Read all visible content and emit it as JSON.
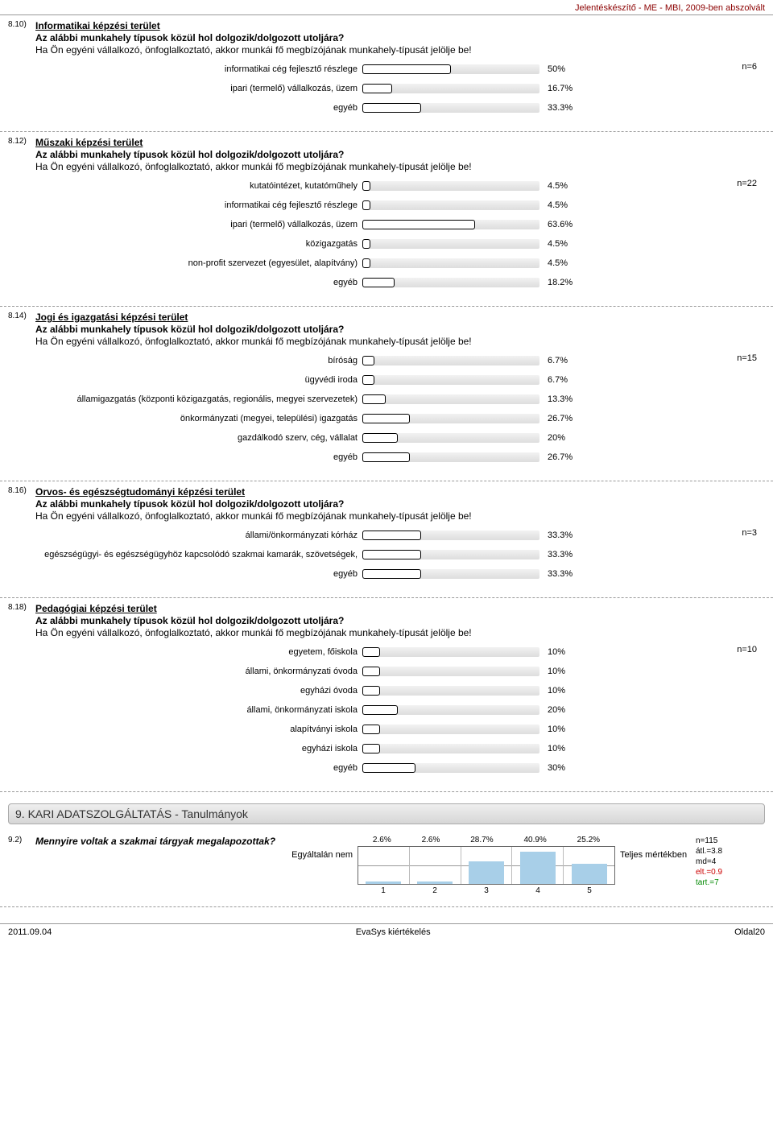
{
  "header_text": "Jelentéskészítő - ME - MBI, 2009-ben abszolvált",
  "q_common": {
    "line2": "Az alábbi munkahely típusok közül hol dolgozik/dolgozott utoljára?",
    "line3": "Ha Ön egyéni vállalkozó, önfoglalkoztató, akkor munkái fő megbízójának munkahely-típusát jelölje be!"
  },
  "bar_track_width": 220,
  "questions": [
    {
      "num": "8.10)",
      "title": "Informatikai képzési terület",
      "n": "n=6",
      "rows": [
        {
          "label": "informatikai cég fejlesztő részlege",
          "pct": 50,
          "pct_text": "50%"
        },
        {
          "label": "ipari (termelő) vállalkozás, üzem",
          "pct": 16.7,
          "pct_text": "16.7%"
        },
        {
          "label": "egyéb",
          "pct": 33.3,
          "pct_text": "33.3%"
        }
      ]
    },
    {
      "num": "8.12)",
      "title": "Műszaki képzési terület",
      "n": "n=22",
      "rows": [
        {
          "label": "kutatóintézet, kutatóműhely",
          "pct": 4.5,
          "pct_text": "4.5%"
        },
        {
          "label": "informatikai cég fejlesztő részlege",
          "pct": 4.5,
          "pct_text": "4.5%"
        },
        {
          "label": "ipari (termelő) vállalkozás, üzem",
          "pct": 63.6,
          "pct_text": "63.6%"
        },
        {
          "label": "közigazgatás",
          "pct": 4.5,
          "pct_text": "4.5%"
        },
        {
          "label": "non-profit szervezet (egyesület, alapítvány)",
          "pct": 4.5,
          "pct_text": "4.5%"
        },
        {
          "label": "egyéb",
          "pct": 18.2,
          "pct_text": "18.2%"
        }
      ]
    },
    {
      "num": "8.14)",
      "title": "Jogi és igazgatási képzési terület",
      "n": "n=15",
      "rows": [
        {
          "label": "bíróság",
          "pct": 6.7,
          "pct_text": "6.7%"
        },
        {
          "label": "ügyvédi iroda",
          "pct": 6.7,
          "pct_text": "6.7%"
        },
        {
          "label": "államigazgatás (központi közigazgatás, regionális, megyei szervezetek)",
          "pct": 13.3,
          "pct_text": "13.3%"
        },
        {
          "label": "önkormányzati (megyei, települési) igazgatás",
          "pct": 26.7,
          "pct_text": "26.7%"
        },
        {
          "label": "gazdálkodó szerv, cég, vállalat",
          "pct": 20,
          "pct_text": "20%"
        },
        {
          "label": "egyéb",
          "pct": 26.7,
          "pct_text": "26.7%"
        }
      ]
    },
    {
      "num": "8.16)",
      "title": "Orvos- és egészségtudományi képzési terület",
      "n": "n=3",
      "rows": [
        {
          "label": "állami/önkormányzati kórház",
          "pct": 33.3,
          "pct_text": "33.3%"
        },
        {
          "label": "egészségügyi- és egészségügyhöz kapcsolódó szakmai kamarák, szövetségek,",
          "pct": 33.3,
          "pct_text": "33.3%"
        },
        {
          "label": "egyéb",
          "pct": 33.3,
          "pct_text": "33.3%"
        }
      ]
    },
    {
      "num": "8.18)",
      "title": "Pedagógiai képzési terület",
      "n": "n=10",
      "rows": [
        {
          "label": "egyetem, főiskola",
          "pct": 10,
          "pct_text": "10%"
        },
        {
          "label": "állami, önkormányzati óvoda",
          "pct": 10,
          "pct_text": "10%"
        },
        {
          "label": "egyházi óvoda",
          "pct": 10,
          "pct_text": "10%"
        },
        {
          "label": "állami, önkormányzati iskola",
          "pct": 20,
          "pct_text": "20%"
        },
        {
          "label": "alapítványi iskola",
          "pct": 10,
          "pct_text": "10%"
        },
        {
          "label": "egyházi iskola",
          "pct": 10,
          "pct_text": "10%"
        },
        {
          "label": "egyéb",
          "pct": 30,
          "pct_text": "30%"
        }
      ]
    }
  ],
  "section_header": "9. KARI ADATSZOLGÁLTATÁS - Tanulmányok",
  "likert": {
    "num": "9.2)",
    "question": "Mennyire voltak a szakmai tárgyak megalapozottak?",
    "left_label": "Egyáltalán nem",
    "right_label": "Teljes mértékben",
    "pcts": [
      "2.6%",
      "2.6%",
      "28.7%",
      "40.9%",
      "25.2%"
    ],
    "heights": [
      2.6,
      2.6,
      28.7,
      40.9,
      25.2
    ],
    "nums": [
      "1",
      "2",
      "3",
      "4",
      "5"
    ],
    "marker_pct": 70,
    "stats": {
      "n": "n=115",
      "atl": "átl.=3.8",
      "md": "md=4",
      "elt": "elt.=0.9",
      "tart": "tart.=7"
    }
  },
  "footer": {
    "left": "2011.09.04",
    "center": "EvaSys kiértékelés",
    "right": "Oldal20"
  }
}
